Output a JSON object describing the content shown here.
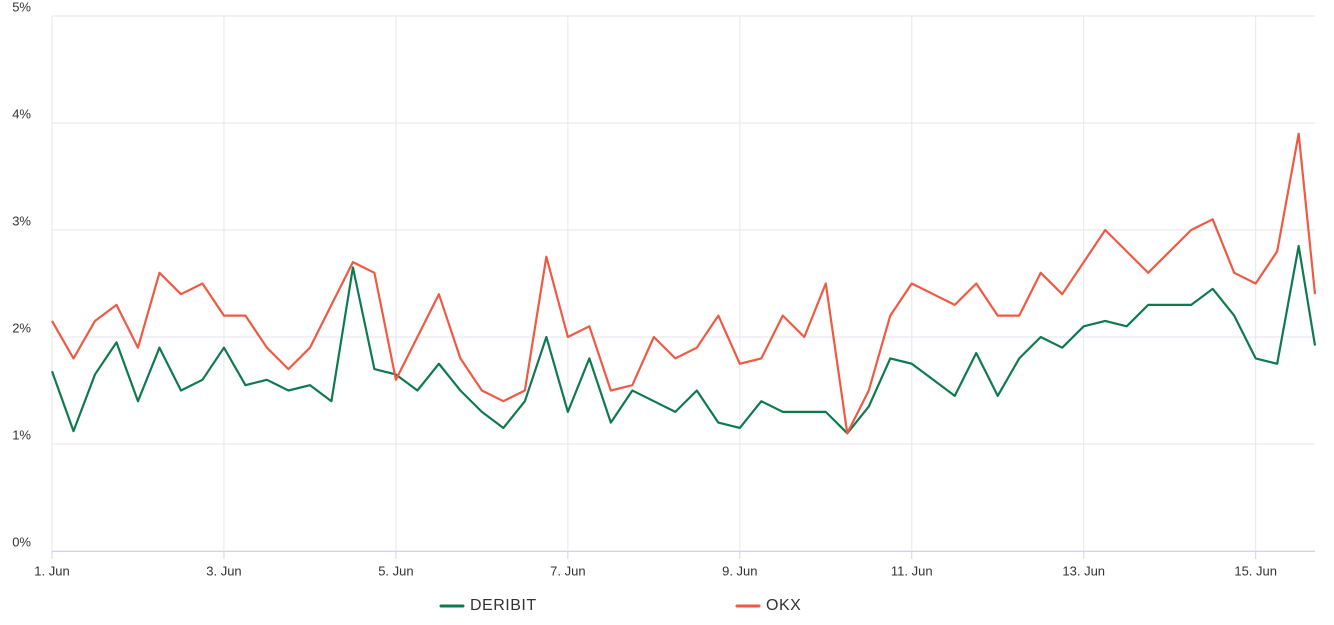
{
  "chart_data": {
    "type": "line",
    "x": [
      1,
      1.25,
      1.5,
      1.75,
      2,
      2.25,
      2.5,
      2.75,
      3,
      3.25,
      3.5,
      3.75,
      4,
      4.25,
      4.5,
      4.75,
      5,
      5.25,
      5.5,
      5.75,
      6,
      6.25,
      6.5,
      6.75,
      7,
      7.25,
      7.5,
      7.75,
      8,
      8.25,
      8.5,
      8.75,
      9,
      9.25,
      9.5,
      9.75,
      10,
      10.25,
      10.5,
      10.75,
      11,
      11.25,
      11.5,
      11.75,
      12,
      12.25,
      12.5,
      12.75,
      13,
      13.25,
      13.5,
      13.75,
      14,
      14.25,
      14.5,
      14.75,
      15,
      15.25,
      15.5,
      15.69
    ],
    "series": [
      {
        "name": "DERIBIT",
        "color": "#0f7a4f",
        "values": [
          1.68,
          1.12,
          1.65,
          1.95,
          1.4,
          1.9,
          1.5,
          1.6,
          1.9,
          1.55,
          1.6,
          1.5,
          1.55,
          1.4,
          2.65,
          1.7,
          1.65,
          1.5,
          1.75,
          1.5,
          1.3,
          1.15,
          1.4,
          2.0,
          1.3,
          1.8,
          1.2,
          1.5,
          1.4,
          1.3,
          1.5,
          1.2,
          1.15,
          1.4,
          1.3,
          1.3,
          1.3,
          1.1,
          1.35,
          1.8,
          1.75,
          1.6,
          1.45,
          1.85,
          1.45,
          1.8,
          2.0,
          1.9,
          2.1,
          2.15,
          2.1,
          2.3,
          2.3,
          2.3,
          2.45,
          2.2,
          1.8,
          1.75,
          2.85,
          1.92
        ]
      },
      {
        "name": "OKX",
        "color": "#ee5a43",
        "values": [
          2.15,
          1.8,
          2.15,
          2.3,
          1.9,
          2.6,
          2.4,
          2.5,
          2.2,
          2.2,
          1.9,
          1.7,
          1.9,
          2.3,
          2.7,
          2.6,
          1.6,
          2.0,
          2.4,
          1.8,
          1.5,
          1.4,
          1.5,
          2.75,
          2.0,
          2.1,
          1.5,
          1.55,
          2.0,
          1.8,
          1.9,
          2.2,
          1.75,
          1.8,
          2.2,
          2.0,
          2.5,
          1.1,
          1.5,
          2.2,
          2.5,
          2.4,
          2.3,
          2.5,
          2.2,
          2.2,
          2.6,
          2.4,
          2.7,
          3.0,
          2.8,
          2.6,
          2.8,
          3.0,
          3.1,
          2.6,
          2.5,
          2.8,
          3.9,
          2.4
        ]
      }
    ],
    "xlim": [
      1,
      15.69
    ],
    "xticks": [
      {
        "value": 1,
        "label": "1. Jun"
      },
      {
        "value": 3,
        "label": "3. Jun"
      },
      {
        "value": 5,
        "label": "5. Jun"
      },
      {
        "value": 7,
        "label": "7. Jun"
      },
      {
        "value": 9,
        "label": "9. Jun"
      },
      {
        "value": 11,
        "label": "11. Jun"
      },
      {
        "value": 13,
        "label": "13. Jun"
      },
      {
        "value": 15,
        "label": "15. Jun"
      }
    ],
    "ylim": [
      0,
      5
    ],
    "yticks": [
      {
        "value": 0,
        "label": "0%"
      },
      {
        "value": 1,
        "label": "1%"
      },
      {
        "value": 2,
        "label": "2%"
      },
      {
        "value": 3,
        "label": "3%"
      },
      {
        "value": 4,
        "label": "4%"
      },
      {
        "value": 5,
        "label": "5%"
      }
    ],
    "grid": true
  }
}
